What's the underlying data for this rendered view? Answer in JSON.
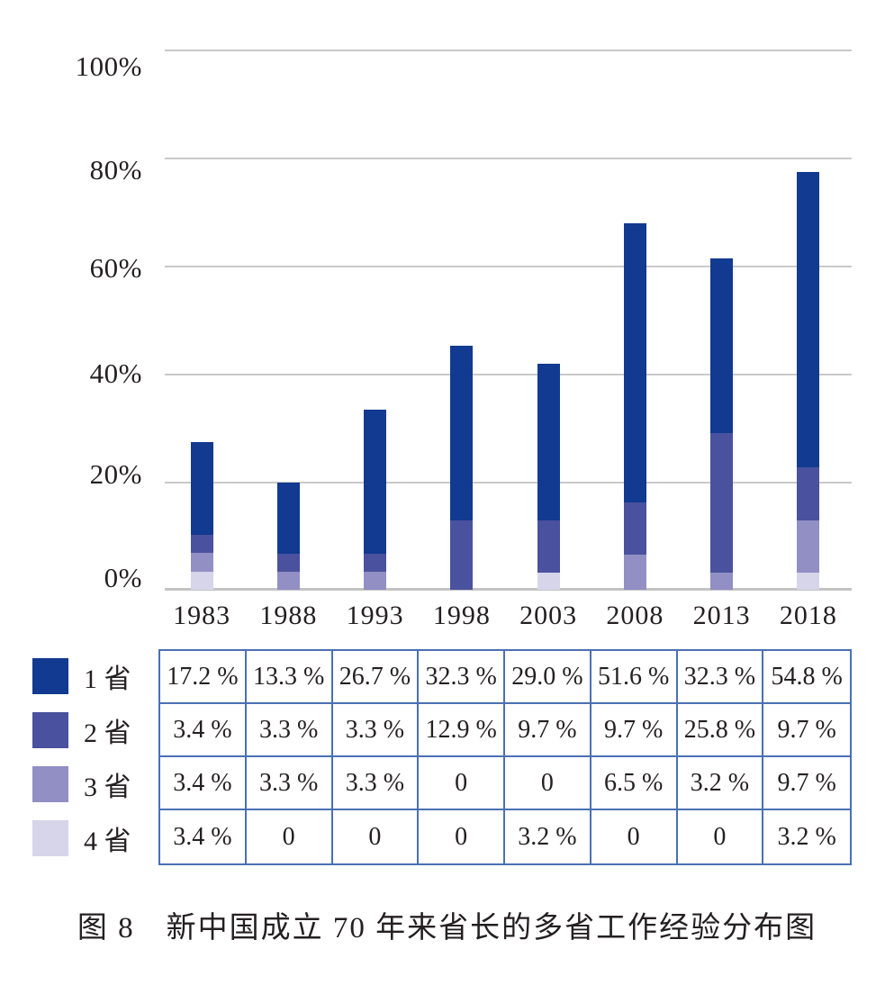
{
  "figure": {
    "caption": "图 8　新中国成立 70 年来省长的多省工作经验分布图"
  },
  "chart_data": {
    "type": "bar",
    "stacked": true,
    "title": "",
    "xlabel": "",
    "ylabel": "",
    "categories": [
      "1983",
      "1988",
      "1993",
      "1998",
      "2003",
      "2008",
      "2013",
      "2018"
    ],
    "series": [
      {
        "name": "1 省",
        "color": "#113a90",
        "values": [
          17.2,
          13.3,
          26.7,
          32.3,
          29.0,
          51.6,
          32.3,
          54.8
        ]
      },
      {
        "name": "2 省",
        "color": "#4a519e",
        "values": [
          3.4,
          3.3,
          3.3,
          12.9,
          9.7,
          9.7,
          25.8,
          9.7
        ]
      },
      {
        "name": "3 省",
        "color": "#918fc4",
        "values": [
          3.4,
          3.3,
          3.3,
          0,
          0,
          6.5,
          3.2,
          9.7
        ]
      },
      {
        "name": "4 省",
        "color": "#d6d5e9",
        "values": [
          3.4,
          0,
          0,
          0,
          3.2,
          0,
          0,
          3.2
        ]
      }
    ],
    "stack_order_bottom_to_top": [
      "4 省",
      "3 省",
      "2 省",
      "1 省"
    ],
    "ylim": [
      0,
      100
    ],
    "yticks": [
      "100%",
      "80%",
      "60%",
      "40%",
      "20%",
      "0%"
    ],
    "grid": true,
    "legend_position": "left-of-table"
  },
  "table": {
    "border_color": "#4a70b4",
    "columns": [
      "1983",
      "1988",
      "1993",
      "1998",
      "2003",
      "2008",
      "2013",
      "2018"
    ],
    "rows": [
      {
        "legend": "1 省",
        "cells": [
          "17.2 %",
          "13.3 %",
          "26.7 %",
          "32.3 %",
          "29.0 %",
          "51.6 %",
          "32.3 %",
          "54.8 %"
        ]
      },
      {
        "legend": "2 省",
        "cells": [
          "3.4 %",
          "3.3 %",
          "3.3 %",
          "12.9 %",
          "9.7 %",
          "9.7 %",
          "25.8 %",
          "9.7 %"
        ]
      },
      {
        "legend": "3 省",
        "cells": [
          "3.4 %",
          "3.3 %",
          "3.3 %",
          "0",
          "0",
          "6.5 %",
          "3.2 %",
          "9.7 %"
        ]
      },
      {
        "legend": "4 省",
        "cells": [
          "3.4 %",
          "0",
          "0",
          "0",
          "3.2 %",
          "0",
          "0",
          "3.2 %"
        ]
      }
    ]
  }
}
